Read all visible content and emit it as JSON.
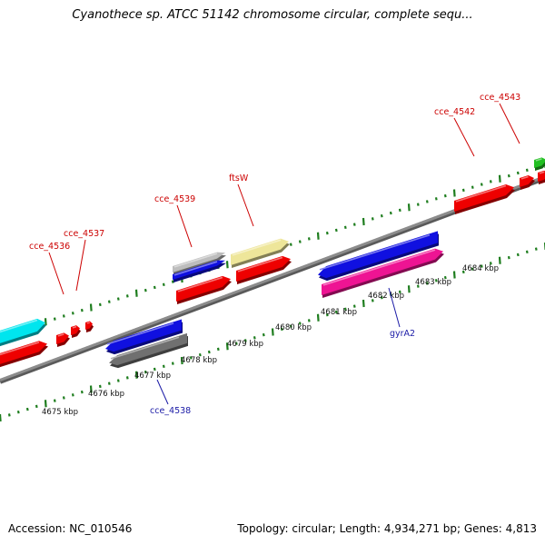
{
  "title": "Cyanothece sp. ATCC 51142 chromosome circular, complete sequ...",
  "footer": {
    "accession": "Accession: NC_010546",
    "summary": "Topology: circular; Length: 4,934,271 bp; Genes: 4,813"
  },
  "colors": {
    "backbone": "#8c8c8c",
    "tick": "#1e7d1e",
    "label_red": "#cc0000",
    "label_blue": "#1a1aa6"
  },
  "scale_labels": [
    "4675 kbp",
    "4676 kbp",
    "4677 kbp",
    "4678 kbp",
    "4679 kbp",
    "4680 kbp",
    "4681 kbp",
    "4682 kbp",
    "4683 kbp",
    "4684 kbp"
  ],
  "gene_labels": [
    {
      "text": "cce_4536",
      "color": "red"
    },
    {
      "text": "cce_4537",
      "color": "red"
    },
    {
      "text": "cce_4539",
      "color": "red"
    },
    {
      "text": "ftsW",
      "color": "red"
    },
    {
      "text": "cce_4542",
      "color": "red"
    },
    {
      "text": "cce_4543",
      "color": "red"
    },
    {
      "text": "cce_4538",
      "color": "blue"
    },
    {
      "text": "gyrA2",
      "color": "blue"
    }
  ],
  "features": [
    {
      "name": "cyan-feature",
      "color": "#00e5ee"
    },
    {
      "name": "red-feature",
      "color": "#ee0000"
    },
    {
      "name": "blue-feature",
      "color": "#1010e0"
    },
    {
      "name": "gray-feature",
      "color": "#707070"
    },
    {
      "name": "pale-yellow-feature",
      "color": "#eee69a"
    },
    {
      "name": "light-gray-feature",
      "color": "#bdbdbd"
    },
    {
      "name": "magenta-feature",
      "color": "#ee1493"
    },
    {
      "name": "green-feature",
      "color": "#22c022"
    }
  ]
}
